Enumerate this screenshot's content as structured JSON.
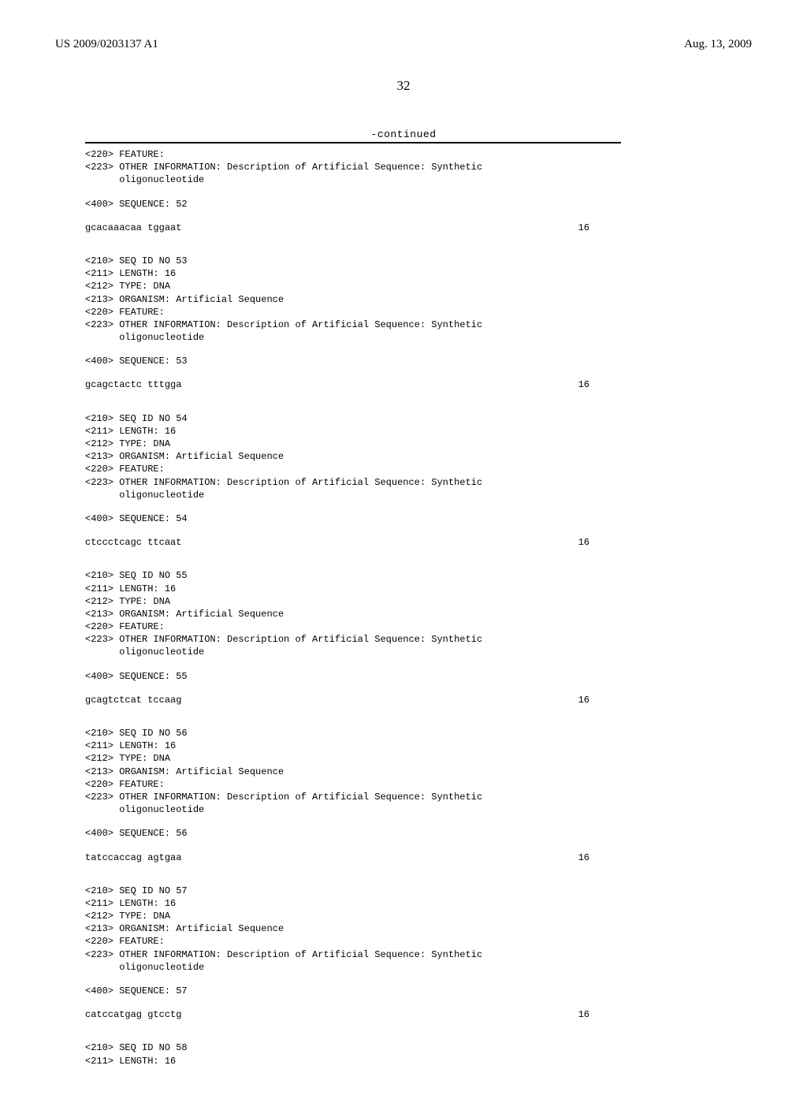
{
  "header": {
    "left": "US 2009/0203137 A1",
    "right": "Aug. 13, 2009"
  },
  "page_number": "32",
  "continued_label": "-continued",
  "entries": [
    {
      "pre_lines": [
        "<220> FEATURE:",
        "<223> OTHER INFORMATION: Description of Artificial Sequence: Synthetic",
        "      oligonucleotide"
      ],
      "seq_label": "<400> SEQUENCE: 52",
      "sequence": "gcacaaacaa tggaat",
      "length": "16"
    },
    {
      "pre_lines": [
        "<210> SEQ ID NO 53",
        "<211> LENGTH: 16",
        "<212> TYPE: DNA",
        "<213> ORGANISM: Artificial Sequence",
        "<220> FEATURE:",
        "<223> OTHER INFORMATION: Description of Artificial Sequence: Synthetic",
        "      oligonucleotide"
      ],
      "seq_label": "<400> SEQUENCE: 53",
      "sequence": "gcagctactc tttgga",
      "length": "16"
    },
    {
      "pre_lines": [
        "<210> SEQ ID NO 54",
        "<211> LENGTH: 16",
        "<212> TYPE: DNA",
        "<213> ORGANISM: Artificial Sequence",
        "<220> FEATURE:",
        "<223> OTHER INFORMATION: Description of Artificial Sequence: Synthetic",
        "      oligonucleotide"
      ],
      "seq_label": "<400> SEQUENCE: 54",
      "sequence": "ctccctcagc ttcaat",
      "length": "16"
    },
    {
      "pre_lines": [
        "<210> SEQ ID NO 55",
        "<211> LENGTH: 16",
        "<212> TYPE: DNA",
        "<213> ORGANISM: Artificial Sequence",
        "<220> FEATURE:",
        "<223> OTHER INFORMATION: Description of Artificial Sequence: Synthetic",
        "      oligonucleotide"
      ],
      "seq_label": "<400> SEQUENCE: 55",
      "sequence": "gcagtctcat tccaag",
      "length": "16"
    },
    {
      "pre_lines": [
        "<210> SEQ ID NO 56",
        "<211> LENGTH: 16",
        "<212> TYPE: DNA",
        "<213> ORGANISM: Artificial Sequence",
        "<220> FEATURE:",
        "<223> OTHER INFORMATION: Description of Artificial Sequence: Synthetic",
        "      oligonucleotide"
      ],
      "seq_label": "<400> SEQUENCE: 56",
      "sequence": "tatccaccag agtgaa",
      "length": "16"
    },
    {
      "pre_lines": [
        "<210> SEQ ID NO 57",
        "<211> LENGTH: 16",
        "<212> TYPE: DNA",
        "<213> ORGANISM: Artificial Sequence",
        "<220> FEATURE:",
        "<223> OTHER INFORMATION: Description of Artificial Sequence: Synthetic",
        "      oligonucleotide"
      ],
      "seq_label": "<400> SEQUENCE: 57",
      "sequence": "catccatgag gtcctg",
      "length": "16"
    }
  ],
  "tail_lines": [
    "<210> SEQ ID NO 58",
    "<211> LENGTH: 16"
  ]
}
